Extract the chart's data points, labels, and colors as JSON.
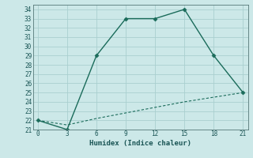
{
  "xlabel": "Humidex (Indice chaleur)",
  "bg_color": "#cce8e8",
  "grid_color": "#aacfcf",
  "line_color": "#1a6b5a",
  "x_line1": [
    0,
    3,
    6,
    9,
    12,
    15,
    18,
    21
  ],
  "y_line1": [
    22,
    21,
    29,
    33,
    33,
    34,
    29,
    25
  ],
  "x_line2": [
    0,
    3,
    6,
    9,
    12,
    15,
    18,
    21
  ],
  "y_line2": [
    22,
    21.5,
    22.2,
    22.8,
    23.4,
    24.0,
    24.5,
    25
  ],
  "xlim": [
    -0.5,
    21.5
  ],
  "ylim": [
    21,
    34.5
  ],
  "xticks": [
    0,
    3,
    6,
    9,
    12,
    15,
    18,
    21
  ],
  "yticks": [
    21,
    22,
    23,
    24,
    25,
    26,
    27,
    28,
    29,
    30,
    31,
    32,
    33,
    34
  ],
  "tick_fontsize": 5.5,
  "xlabel_fontsize": 6.5
}
